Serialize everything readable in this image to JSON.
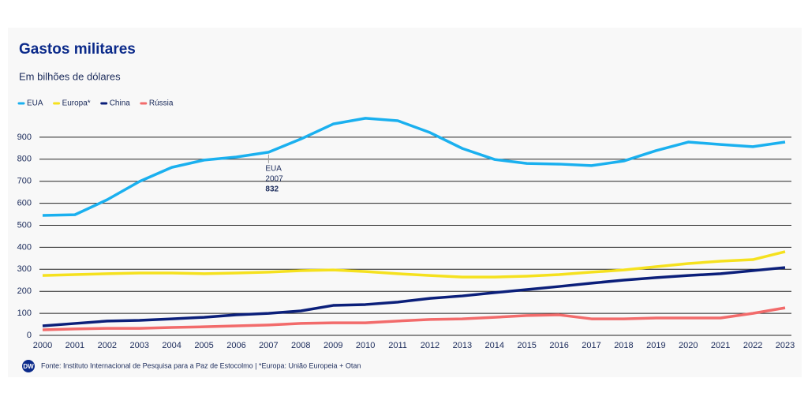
{
  "chart_data": {
    "type": "line",
    "title": "Gastos militares",
    "subtitle": "Em bilhões de dólares",
    "source": "Fonte: Instituto Internacional de Pesquisa para a Paz de Estocolmo | *Europa: União Europeia + Otan",
    "logo": "DW",
    "categories": [
      "2000",
      "2001",
      "2002",
      "2003",
      "2004",
      "2005",
      "2006",
      "2007",
      "2008",
      "2009",
      "2010",
      "2011",
      "2012",
      "2013",
      "2014",
      "2015",
      "2016",
      "2017",
      "2018",
      "2019",
      "2020",
      "2021",
      "2022",
      "2023"
    ],
    "series": [
      {
        "name": "EUA",
        "color": "#1ab0ef",
        "values": [
          545,
          548,
          616,
          699,
          763,
          796,
          810,
          832,
          892,
          960,
          986,
          975,
          921,
          849,
          799,
          781,
          778,
          771,
          792,
          839,
          878,
          867,
          857,
          878
        ]
      },
      {
        "name": "Europa*",
        "color": "#f5e11e",
        "values": [
          272,
          276,
          280,
          283,
          283,
          280,
          283,
          287,
          294,
          297,
          290,
          280,
          272,
          265,
          265,
          269,
          276,
          287,
          297,
          312,
          326,
          337,
          344,
          380
        ]
      },
      {
        "name": "China",
        "color": "#0b1f7a",
        "values": [
          43,
          54,
          65,
          68,
          75,
          82,
          93,
          100,
          111,
          136,
          140,
          151,
          168,
          179,
          194,
          208,
          222,
          237,
          251,
          262,
          272,
          280,
          294,
          308
        ]
      },
      {
        "name": "Rússia",
        "color": "#f26b6b",
        "values": [
          25,
          29,
          32,
          32,
          36,
          39,
          43,
          47,
          54,
          57,
          57,
          65,
          72,
          75,
          82,
          90,
          93,
          75,
          75,
          79,
          79,
          79,
          100,
          125
        ]
      }
    ],
    "annotation": {
      "series": 0,
      "index": 7
    },
    "ylim": [
      0,
      1000
    ],
    "yticks": [
      0,
      100,
      200,
      300,
      400,
      500,
      600,
      700,
      800,
      900
    ],
    "grid": true
  }
}
